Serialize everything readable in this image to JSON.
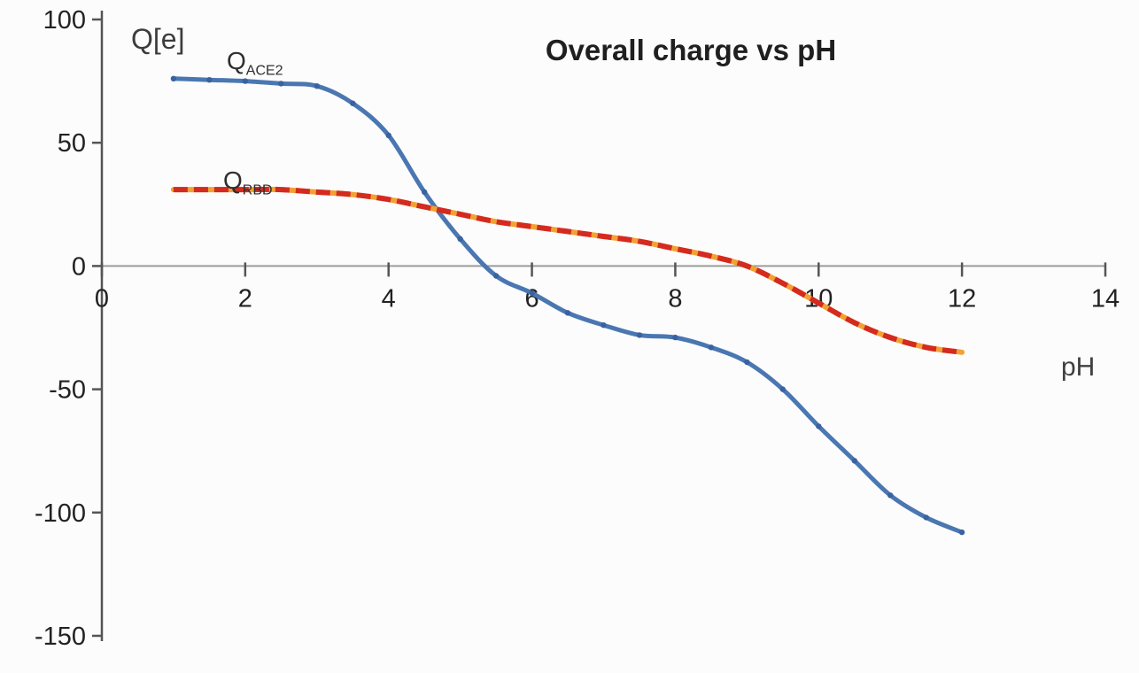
{
  "labels": {
    "q_axis": "Q[e]",
    "ph_axis": "pH",
    "ace2_main": "Q",
    "ace2_sub": "ACE2",
    "rbd_main": "Q",
    "rbd_sub": "RBD"
  },
  "chart_data": {
    "type": "line",
    "title": "Overall charge vs pH",
    "xlabel": "pH",
    "ylabel": "Q[e]",
    "xlim": [
      0,
      14
    ],
    "ylim": [
      -150,
      100
    ],
    "xticks": [
      0,
      2,
      4,
      6,
      8,
      10,
      12,
      14
    ],
    "yticks": [
      100,
      50,
      0,
      -50,
      -100,
      -150
    ],
    "grid": false,
    "legend_position": "inline-annotations",
    "axis_color": "#555555",
    "zero_line_color": "#9b9b9b",
    "x": [
      1,
      1.5,
      2,
      2.5,
      3,
      3.5,
      4,
      4.5,
      5,
      5.5,
      6,
      6.5,
      7,
      7.5,
      8,
      8.5,
      9,
      9.5,
      10,
      10.5,
      11,
      11.5,
      12
    ],
    "series": [
      {
        "name": "Q_ACE2",
        "color": "#4a77b2",
        "marker_color": "#3b62a0",
        "style": "solid",
        "markers": true,
        "y": [
          76,
          75.5,
          75,
          74,
          73,
          66,
          53,
          30,
          11,
          -4,
          -11,
          -19,
          -24,
          -28,
          -29,
          -33,
          -39,
          -50,
          -65,
          -79,
          -93,
          -102,
          -108
        ]
      },
      {
        "name": "Q_RBD",
        "color": "#d42a20",
        "underlay_color": "#f2a233",
        "style": "dashed",
        "markers": false,
        "y": [
          31,
          31,
          31,
          31,
          30,
          29,
          27,
          24,
          21,
          18,
          16,
          14,
          12,
          10,
          7,
          4,
          0,
          -7,
          -15,
          -23,
          -29,
          -33,
          -35
        ]
      }
    ]
  }
}
